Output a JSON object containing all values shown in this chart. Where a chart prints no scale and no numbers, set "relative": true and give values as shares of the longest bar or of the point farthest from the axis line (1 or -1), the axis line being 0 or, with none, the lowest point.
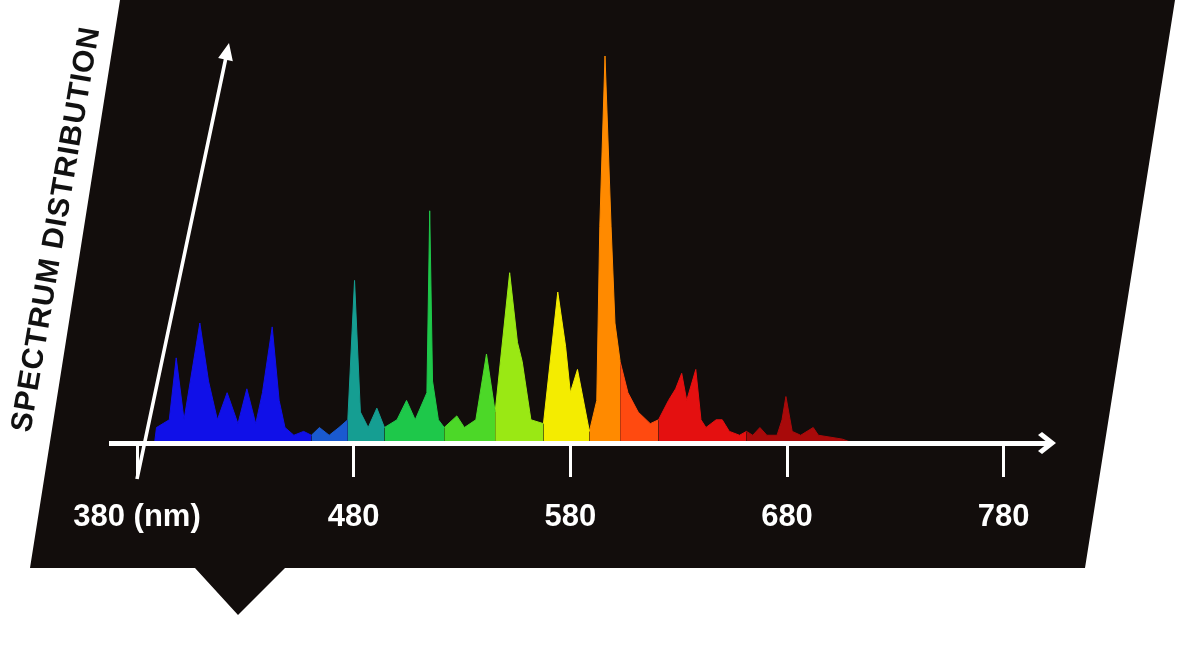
{
  "chart_data": {
    "type": "area",
    "relative": true,
    "ylabel": "SPECTRUM DISTRIBUTION",
    "xlim": [
      368,
      800
    ],
    "xticks": [
      {
        "value": 380,
        "label": "380 (nm)"
      },
      480,
      580,
      680,
      780
    ],
    "series": [
      {
        "color": "#1010e8",
        "x": [
          388.1,
          389.0,
          394.9,
          398.1,
          401.7,
          409.0,
          413.0,
          417.1,
          421.6,
          426.6,
          430.7,
          434.8,
          437.9,
          442.4,
          445.6,
          448.3,
          452.4,
          456.9,
          460.5
        ],
        "values": [
          0,
          0.04,
          0.06,
          0.22,
          0.06,
          0.31,
          0.16,
          0.06,
          0.13,
          0.05,
          0.14,
          0.05,
          0.13,
          0.3,
          0.11,
          0.04,
          0.02,
          0.03,
          0.02
        ]
      },
      {
        "color": "#1a5ad0",
        "x": [
          460.5,
          464.2,
          468.7,
          473.2,
          477.3
        ],
        "values": [
          0.02,
          0.04,
          0.02,
          0.04,
          0.06
        ]
      },
      {
        "color": "#159e92",
        "x": [
          477.3,
          480.4,
          483.1,
          486.7,
          490.7,
          494.2
        ],
        "values": [
          0.06,
          0.42,
          0.08,
          0.04,
          0.09,
          0.04
        ]
      },
      {
        "color": "#1ec84a",
        "x": [
          494.2,
          500.0,
          504.4,
          508.4,
          513.8,
          515.1,
          516.4,
          519.1,
          521.8
        ],
        "values": [
          0.04,
          0.06,
          0.11,
          0.06,
          0.13,
          0.6,
          0.16,
          0.06,
          0.04
        ]
      },
      {
        "color": "#4cd828",
        "x": [
          521.8,
          527.6,
          531.1,
          536.4,
          541.3,
          545.3
        ],
        "values": [
          0.04,
          0.07,
          0.04,
          0.06,
          0.23,
          0.08
        ]
      },
      {
        "color": "#9ae814",
        "x": [
          545.3,
          552.0,
          555.6,
          557.8,
          561.8,
          567.6
        ],
        "values": [
          0.08,
          0.44,
          0.26,
          0.21,
          0.06,
          0.05
        ]
      },
      {
        "color": "#f4ec00",
        "x": [
          567.6,
          574.2,
          577.8,
          580.0,
          583.3,
          588.8
        ],
        "values": [
          0.05,
          0.39,
          0.25,
          0.13,
          0.19,
          0.03
        ]
      },
      {
        "color": "#ff8a00",
        "x": [
          588.8,
          592.2,
          593.6,
          596.0,
          598.8,
          600.6,
          603.0
        ],
        "values": [
          0.03,
          0.11,
          0.56,
          1,
          0.56,
          0.31,
          0.21
        ]
      },
      {
        "color": "#ff4a10",
        "x": [
          603.0,
          606.6,
          611.3,
          616.9,
          620.7
        ],
        "values": [
          0.21,
          0.13,
          0.08,
          0.05,
          0.06
        ]
      },
      {
        "color": "#e41010",
        "x": [
          620.7,
          625.3,
          628.6,
          631.4,
          633.7,
          637.9,
          640.3,
          642.6,
          647.3,
          650.1,
          653.4,
          658.1,
          661.3
        ],
        "values": [
          0.06,
          0.11,
          0.14,
          0.18,
          0.11,
          0.19,
          0.06,
          0.04,
          0.06,
          0.06,
          0.03,
          0.02,
          0.03
        ]
      },
      {
        "color": "#a80a0a",
        "x": [
          661.3,
          664.2,
          667.5,
          670.7,
          675.4,
          677.7,
          679.5,
          682.4,
          686.3,
          692.1,
          694.5,
          705.6,
          710.4
        ],
        "values": [
          0.03,
          0.02,
          0.04,
          0.02,
          0.02,
          0.06,
          0.12,
          0.03,
          0.02,
          0.04,
          0.02,
          0.01,
          0
        ]
      }
    ]
  }
}
